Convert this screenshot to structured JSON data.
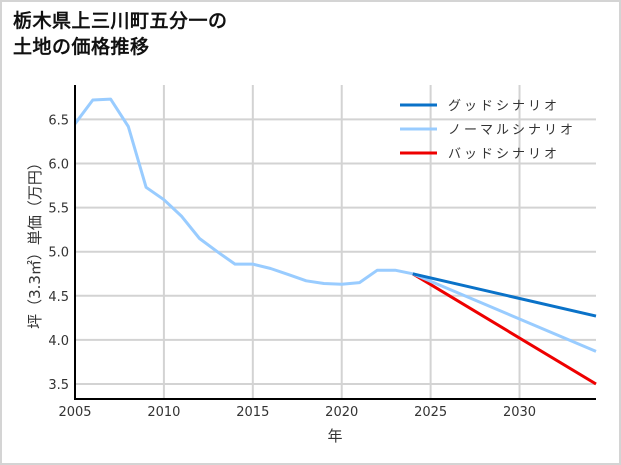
{
  "title": {
    "line1": "栃木県上三川町五分一の",
    "line2": "土地の価格推移"
  },
  "colors": {
    "good": "#0a72c8",
    "normal": "#99ccff",
    "bad": "#ee0000",
    "grid": "#d3d3d3",
    "axis": "#000000"
  },
  "chart_data": {
    "type": "line",
    "title": "栃木県上三川町五分一の土地の価格推移",
    "xlabel": "年",
    "ylabel": "坪（3.3㎡）単価（万円）",
    "xlim": [
      2005,
      2034.3
    ],
    "ylim": [
      3.33,
      6.89
    ],
    "x_ticks": [
      "2005",
      "2010",
      "2015",
      "2020",
      "2025",
      "2030"
    ],
    "y_ticks": [
      "3.5",
      "4.0",
      "4.5",
      "5.0",
      "5.5",
      "6.0",
      "6.5"
    ],
    "grid": true,
    "legend_position": "upper right",
    "series": [
      {
        "name": "ノーマルシナリオ",
        "key": "historical",
        "x": [
          2005,
          2006,
          2007,
          2008,
          2009,
          2010,
          2011,
          2012,
          2013,
          2014,
          2015,
          2016,
          2017,
          2018,
          2019,
          2020,
          2021,
          2022,
          2023,
          2024
        ],
        "values": [
          6.45,
          6.72,
          6.73,
          6.42,
          5.73,
          5.59,
          5.4,
          5.15,
          5.0,
          4.86,
          4.86,
          4.81,
          4.74,
          4.67,
          4.64,
          4.63,
          4.65,
          4.79,
          4.79,
          4.75
        ]
      },
      {
        "name": "グッドシナリオ",
        "key": "good",
        "x": [
          2024,
          2034.3
        ],
        "values": [
          4.75,
          4.27
        ]
      },
      {
        "name": "ノーマルシナリオ",
        "key": "normal",
        "x": [
          2024,
          2034.3
        ],
        "values": [
          4.75,
          3.87
        ]
      },
      {
        "name": "バッドシナリオ",
        "key": "bad",
        "x": [
          2024,
          2034.3
        ],
        "values": [
          4.75,
          3.5
        ]
      }
    ]
  },
  "legend": [
    {
      "label": "グッドシナリオ",
      "color": "#0a72c8"
    },
    {
      "label": "ノーマルシナリオ",
      "color": "#99ccff"
    },
    {
      "label": "バッドシナリオ",
      "color": "#ee0000"
    }
  ],
  "axes": {
    "xlabel": "年",
    "ylabel": "坪（3.3㎡）単価（万円）"
  }
}
